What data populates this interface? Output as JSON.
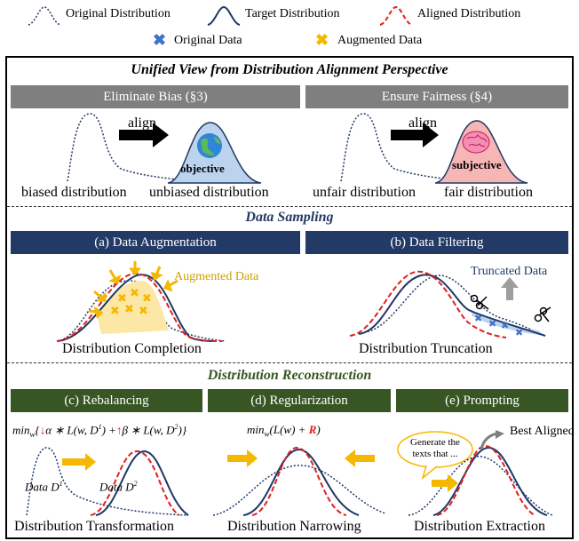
{
  "legend": {
    "original_distribution": "Original Distribution",
    "target_distribution": "Target Distribution",
    "aligned_distribution": "Aligned Distribution",
    "original_data": "Original Data",
    "augmented_data": "Augmented Data"
  },
  "section1": {
    "title": "Unified View from Distribution Alignment Perspective",
    "bias_header": "Eliminate Bias (§3)",
    "fair_header": "Ensure Fairness (§4)",
    "align_label_1": "align",
    "align_label_2": "align",
    "objective": "objective",
    "subjective": "subjective",
    "biased": "biased distribution",
    "unbiased": "unbiased distribution",
    "unfair": "unfair distribution",
    "fair": "fair distribution"
  },
  "section2": {
    "title": "Data Sampling",
    "aug_header": "(a) Data Augmentation",
    "filter_header": "(b) Data Filtering",
    "augmented_data": "Augmented Data",
    "truncated_data": "Truncated Data",
    "completion": "Distribution Completion",
    "truncation": "Distribution Truncation"
  },
  "section3": {
    "title": "Distribution Reconstruction",
    "rebalancing_header": "(c) Rebalancing",
    "regularization_header": "(d) Regularization",
    "prompting_header": "(e) Prompting",
    "formula_rebalancing_prefix": "min",
    "formula_rebalancing_sub": "w",
    "formula_rebalancing_body": "{",
    "formula_rebalancing_alpha": "α ∗ L(w, D",
    "formula_rebalancing_sup1": "1",
    "formula_rebalancing_mid": ") +",
    "formula_rebalancing_beta": "β ∗ L(w, D",
    "formula_rebalancing_sup2": "2",
    "formula_rebalancing_end": ")}",
    "formula_reg_prefix": "min",
    "formula_reg_sub": "w",
    "formula_reg_body": "(L(w) + ",
    "formula_reg_r": "R",
    "formula_reg_end": ")",
    "data_d1": "Data D",
    "data_d1_sup": "1",
    "data_d2": "Data D",
    "data_d2_sup": "2",
    "bubble_text": "Generate the texts that ...",
    "best_aligned": "Best Aligned",
    "transformation": "Distribution Transformation",
    "narrowing": "Distribution Narrowing",
    "extraction": "Distribution Extraction"
  },
  "colors": {
    "gray_header": "#7f7f7f",
    "navy_header": "#233a66",
    "green_header": "#375623",
    "target_curve": "#1f3864",
    "aligned_curve": "#e02020",
    "orange": "#f5b800",
    "blue_x": "#4472c4"
  },
  "icons": [
    "globe-icon",
    "brain-icon",
    "scissors-icon",
    "align-arrow-icon",
    "sun-rays-icon"
  ]
}
